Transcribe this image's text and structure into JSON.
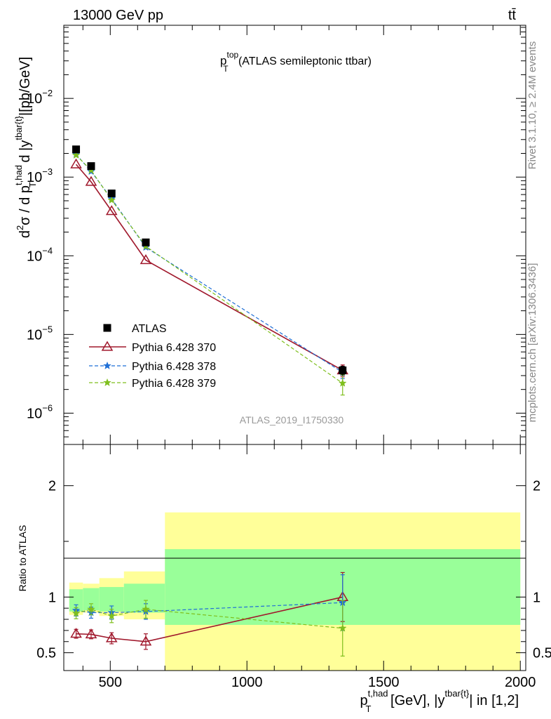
{
  "header": {
    "energy_label": "13000 GeV pp",
    "process_label": "tt̄"
  },
  "side_labels": {
    "rivet": "Rivet 3.1.10, ≥ 2.4M events",
    "mcplots": "mcplots.cern.ch [arXiv:1306.3436]"
  },
  "chart_data": [
    {
      "type": "scatter",
      "panel": "main",
      "title": {
        "base": "p",
        "sup": "top",
        "sub": "T",
        "rest": " (ATLAS semileptonic ttbar)"
      },
      "ylabel": "d²σ / d p_T^{t,had} d |y^{tbar{t}}| [pb/GeV]",
      "ylabel_parts": {
        "d2sigma": "d",
        "two": "2",
        "sigma": "σ / d p",
        "sup1": "t,had",
        "sub1": "T",
        "mid": " d |y",
        "sup2": "tbar{t}",
        "end": "|[pb/GeV]"
      },
      "yscale": "log",
      "ylim": [
        4e-07,
        0.085
      ],
      "xlim": [
        330,
        2020
      ],
      "yticks": [
        {
          "value": 1e-06,
          "base": "10",
          "exp": "−6"
        },
        {
          "value": 1e-05,
          "base": "10",
          "exp": "−5"
        },
        {
          "value": 0.0001,
          "base": "10",
          "exp": "−4"
        },
        {
          "value": 0.001,
          "base": "10",
          "exp": "−3"
        },
        {
          "value": 0.01,
          "base": "10",
          "exp": "−2"
        }
      ],
      "watermark": "ATLAS_2019_I1750330",
      "legend_position": "center-left",
      "series": [
        {
          "name": "ATLAS",
          "style": "data",
          "color": "#000000",
          "x": [
            375,
            430,
            505,
            630,
            1350
          ],
          "y": [
            0.00225,
            0.00138,
            0.00062,
            0.000148,
            3.5e-06
          ],
          "yerr": [
            0.0001,
            6e-05,
            3e-05,
            8e-06,
            4.5e-07
          ]
        },
        {
          "name": "Pythia 6.428 370",
          "style": "triangle-solid",
          "color": "#a0182c",
          "x": [
            375,
            430,
            505,
            630,
            1350
          ],
          "y": [
            0.00145,
            0.00087,
            0.00037,
            8.8e-05,
            3.5e-06
          ],
          "yerr": [
            0,
            0,
            0,
            0,
            6e-07
          ]
        },
        {
          "name": "Pythia 6.428 378",
          "style": "star-dashed",
          "color": "#1f6fd6",
          "x": [
            375,
            430,
            505,
            630,
            1350
          ],
          "y": [
            0.00195,
            0.00118,
            0.00053,
            0.000128,
            3.3e-06
          ],
          "yerr": [
            0,
            0,
            0,
            0,
            5.5e-07
          ]
        },
        {
          "name": "Pythia 6.428 379",
          "style": "star-dashed",
          "color": "#7fbf1e",
          "x": [
            375,
            430,
            505,
            630,
            1350
          ],
          "y": [
            0.0019,
            0.00122,
            0.00051,
            0.000132,
            2.4e-06
          ],
          "yerr": [
            0,
            0,
            0,
            0,
            7e-07
          ]
        }
      ]
    },
    {
      "type": "scatter",
      "panel": "ratio",
      "ylabel": "Ratio to ATLAS",
      "ylim": [
        0.34,
        2.37
      ],
      "xlim": [
        330,
        2020
      ],
      "yticks": [
        {
          "value": 0.5,
          "label": "0.5"
        },
        {
          "value": 1,
          "label": "1"
        },
        {
          "value": 2,
          "label": "2"
        }
      ],
      "xticks": [
        {
          "value": 500,
          "label": "500"
        },
        {
          "value": 1000,
          "label": "1000"
        },
        {
          "value": 1500,
          "label": "1500"
        },
        {
          "value": 2000,
          "label": "2000"
        }
      ],
      "xlabel_parts": {
        "base": "p",
        "sup1": "t,had",
        "sub1": "T",
        "mid": " [GeV], |y",
        "sup2": "tbar{t}",
        "end": "| in [1,2]"
      },
      "bands": [
        {
          "xmin": 350,
          "xmax": 400,
          "y68": [
            0.87,
            1.07
          ],
          "y95": [
            0.84,
            1.13
          ]
        },
        {
          "xmin": 400,
          "xmax": 460,
          "y68": [
            0.88,
            1.08
          ],
          "y95": [
            0.86,
            1.12
          ]
        },
        {
          "xmin": 460,
          "xmax": 550,
          "y68": [
            0.87,
            1.09
          ],
          "y95": [
            0.83,
            1.17
          ]
        },
        {
          "xmin": 550,
          "xmax": 700,
          "y68": [
            0.86,
            1.12
          ],
          "y95": [
            0.8,
            1.23
          ]
        },
        {
          "xmin": 700,
          "xmax": 2000,
          "y68": [
            0.75,
            1.43
          ],
          "y95": [
            0.3,
            1.76
          ]
        }
      ],
      "series": [
        {
          "name": "Pythia 6.428 370",
          "color": "#a0182c",
          "x": [
            375,
            430,
            505,
            630,
            1350
          ],
          "y": [
            0.67,
            0.665,
            0.63,
            0.6,
            1.0
          ],
          "yerr": [
            0.04,
            0.04,
            0.05,
            0.07,
            0.22
          ]
        },
        {
          "name": "Pythia 6.428 378",
          "color": "#1f6fd6",
          "x": [
            375,
            430,
            505,
            630,
            1350
          ],
          "y": [
            0.88,
            0.86,
            0.86,
            0.87,
            0.95
          ],
          "yerr": [
            0.05,
            0.05,
            0.06,
            0.07,
            0.25
          ]
        },
        {
          "name": "Pythia 6.428 379",
          "color": "#7fbf1e",
          "x": [
            375,
            430,
            505,
            630,
            1350
          ],
          "y": [
            0.855,
            0.89,
            0.83,
            0.89,
            0.72
          ],
          "yerr": [
            0.05,
            0.05,
            0.06,
            0.08,
            0.25
          ]
        }
      ]
    }
  ]
}
